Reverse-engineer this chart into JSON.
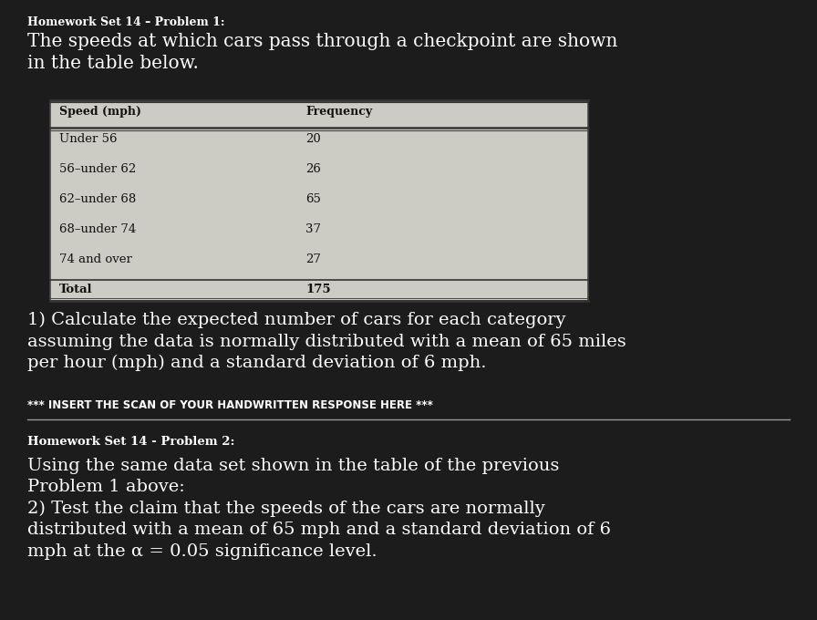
{
  "background_color": "#1c1c1c",
  "text_color": "#ffffff",
  "table_bg_color": "#cccbc4",
  "problem1_header": "Homework Set 14 – Problem 1:",
  "problem1_intro": "The speeds at which cars pass through a checkpoint are shown\nin the table below.",
  "table_headers": [
    "Speed (mph)",
    "Frequency"
  ],
  "table_rows": [
    [
      "Under 56",
      "20"
    ],
    [
      "56–under 62",
      "26"
    ],
    [
      "62–under 68",
      "65"
    ],
    [
      "68–under 74",
      "37"
    ],
    [
      "74 and over",
      "27"
    ],
    [
      "Total",
      "175"
    ]
  ],
  "problem1_question": "1) Calculate the expected number of cars for each category\nassuming the data is normally distributed with a mean of 65 miles\nper hour (mph) and a standard deviation of 6 mph.",
  "problem1_insert": "*** INSERT THE SCAN OF YOUR HANDWRITTEN RESPONSE HERE ***",
  "separator_color": "#999999",
  "problem2_header": "Homework Set 14 - Problem 2:",
  "problem2_text": "Using the same data set shown in the table of the previous\nProblem 1 above:\n2) Test the claim that the speeds of the cars are normally\ndistributed with a mean of 65 mph and a standard deviation of 6\nmph at the α = 0.05 significance level.",
  "figwidth": 8.96,
  "figheight": 6.8,
  "dpi": 100
}
